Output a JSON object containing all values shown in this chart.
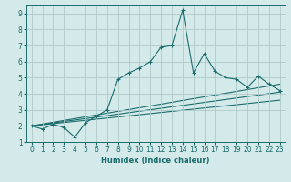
{
  "xlabel": "Humidex (Indice chaleur)",
  "ylabel": "",
  "background_color": "#d4eaea",
  "grid_color": "#aec8c8",
  "line_color": "#1a6b6b",
  "xlim": [
    -0.5,
    23.5
  ],
  "ylim": [
    1,
    9.5
  ],
  "xticks": [
    0,
    1,
    2,
    3,
    4,
    5,
    6,
    7,
    8,
    9,
    10,
    11,
    12,
    13,
    14,
    15,
    16,
    17,
    18,
    19,
    20,
    21,
    22,
    23
  ],
  "yticks": [
    1,
    2,
    3,
    4,
    5,
    6,
    7,
    8,
    9
  ],
  "series": [
    {
      "x": [
        0,
        1,
        2,
        3,
        4,
        5,
        6,
        7,
        8,
        9,
        10,
        11,
        12,
        13,
        14,
        15,
        16,
        17,
        18,
        19,
        20,
        21,
        22,
        23
      ],
      "y": [
        2.0,
        1.8,
        2.1,
        1.9,
        1.3,
        2.2,
        2.6,
        3.0,
        4.9,
        5.3,
        5.6,
        6.0,
        6.9,
        7.0,
        9.2,
        5.3,
        6.5,
        5.4,
        5.0,
        4.9,
        4.4,
        5.1,
        4.6,
        4.2
      ]
    },
    {
      "x": [
        0,
        23
      ],
      "y": [
        2.0,
        4.6
      ]
    },
    {
      "x": [
        0,
        23
      ],
      "y": [
        2.0,
        4.1
      ]
    },
    {
      "x": [
        0,
        23
      ],
      "y": [
        2.0,
        3.6
      ]
    }
  ]
}
